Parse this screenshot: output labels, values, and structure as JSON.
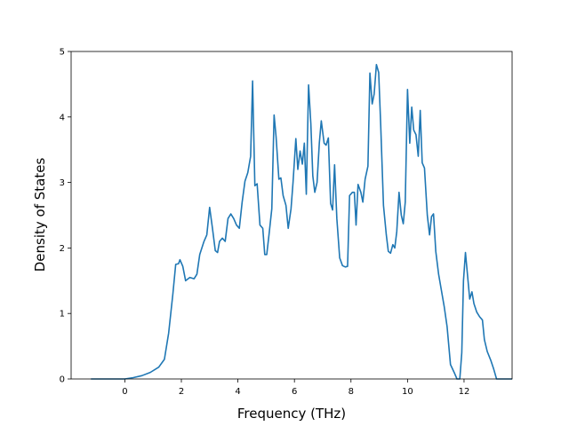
{
  "chart_data": {
    "type": "line",
    "title": "",
    "xlabel": "Frequency (THz)",
    "ylabel": "Density of States",
    "xlim": [
      -1.9,
      13.7
    ],
    "ylim": [
      0,
      5
    ],
    "x_ticks": [
      0,
      2,
      4,
      6,
      8,
      10,
      12
    ],
    "y_ticks": [
      0,
      1,
      2,
      3,
      4,
      5
    ],
    "x_tick_labels": [
      "0",
      "2",
      "4",
      "6",
      "8",
      "10",
      "12"
    ],
    "y_tick_labels": [
      "0",
      "1",
      "2",
      "3",
      "4",
      "5"
    ],
    "grid": false,
    "legend": "none",
    "series": [
      {
        "color": "#1f77b4",
        "points": [
          [
            -1.2,
            0.0
          ],
          [
            0.0,
            0.0
          ],
          [
            0.3,
            0.02
          ],
          [
            0.6,
            0.05
          ],
          [
            0.9,
            0.1
          ],
          [
            1.2,
            0.18
          ],
          [
            1.4,
            0.3
          ],
          [
            1.55,
            0.7
          ],
          [
            1.7,
            1.3
          ],
          [
            1.8,
            1.75
          ],
          [
            1.9,
            1.76
          ],
          [
            1.95,
            1.82
          ],
          [
            2.05,
            1.72
          ],
          [
            2.15,
            1.5
          ],
          [
            2.3,
            1.55
          ],
          [
            2.45,
            1.53
          ],
          [
            2.55,
            1.6
          ],
          [
            2.65,
            1.9
          ],
          [
            2.8,
            2.1
          ],
          [
            2.9,
            2.2
          ],
          [
            3.0,
            2.62
          ],
          [
            3.1,
            2.3
          ],
          [
            3.2,
            1.96
          ],
          [
            3.28,
            1.93
          ],
          [
            3.35,
            2.1
          ],
          [
            3.45,
            2.15
          ],
          [
            3.55,
            2.1
          ],
          [
            3.65,
            2.45
          ],
          [
            3.75,
            2.52
          ],
          [
            3.85,
            2.45
          ],
          [
            3.95,
            2.35
          ],
          [
            4.05,
            2.3
          ],
          [
            4.15,
            2.7
          ],
          [
            4.25,
            3.02
          ],
          [
            4.35,
            3.15
          ],
          [
            4.45,
            3.4
          ],
          [
            4.52,
            4.55
          ],
          [
            4.6,
            2.95
          ],
          [
            4.68,
            2.98
          ],
          [
            4.78,
            2.35
          ],
          [
            4.88,
            2.3
          ],
          [
            4.95,
            1.9
          ],
          [
            5.02,
            1.9
          ],
          [
            5.1,
            2.2
          ],
          [
            5.2,
            2.6
          ],
          [
            5.28,
            4.03
          ],
          [
            5.35,
            3.7
          ],
          [
            5.45,
            3.05
          ],
          [
            5.52,
            3.07
          ],
          [
            5.6,
            2.8
          ],
          [
            5.7,
            2.65
          ],
          [
            5.78,
            2.3
          ],
          [
            5.88,
            2.6
          ],
          [
            5.95,
            3.0
          ],
          [
            6.05,
            3.67
          ],
          [
            6.12,
            3.2
          ],
          [
            6.2,
            3.48
          ],
          [
            6.28,
            3.28
          ],
          [
            6.35,
            3.6
          ],
          [
            6.42,
            2.82
          ],
          [
            6.5,
            4.49
          ],
          [
            6.58,
            3.9
          ],
          [
            6.65,
            3.1
          ],
          [
            6.72,
            2.85
          ],
          [
            6.8,
            3.0
          ],
          [
            6.88,
            3.6
          ],
          [
            6.95,
            3.94
          ],
          [
            7.05,
            3.6
          ],
          [
            7.12,
            3.57
          ],
          [
            7.2,
            3.68
          ],
          [
            7.28,
            2.68
          ],
          [
            7.35,
            2.58
          ],
          [
            7.42,
            3.27
          ],
          [
            7.5,
            2.45
          ],
          [
            7.6,
            1.85
          ],
          [
            7.7,
            1.73
          ],
          [
            7.8,
            1.71
          ],
          [
            7.88,
            1.72
          ],
          [
            7.95,
            2.8
          ],
          [
            8.05,
            2.85
          ],
          [
            8.12,
            2.85
          ],
          [
            8.18,
            2.35
          ],
          [
            8.25,
            2.97
          ],
          [
            8.35,
            2.85
          ],
          [
            8.42,
            2.7
          ],
          [
            8.5,
            3.05
          ],
          [
            8.6,
            3.25
          ],
          [
            8.67,
            4.67
          ],
          [
            8.75,
            4.2
          ],
          [
            8.82,
            4.35
          ],
          [
            8.9,
            4.8
          ],
          [
            8.98,
            4.68
          ],
          [
            9.05,
            3.9
          ],
          [
            9.15,
            2.65
          ],
          [
            9.25,
            2.2
          ],
          [
            9.32,
            1.95
          ],
          [
            9.4,
            1.92
          ],
          [
            9.48,
            2.05
          ],
          [
            9.55,
            2.0
          ],
          [
            9.62,
            2.25
          ],
          [
            9.7,
            2.85
          ],
          [
            9.78,
            2.5
          ],
          [
            9.85,
            2.37
          ],
          [
            9.92,
            2.7
          ],
          [
            10.0,
            4.42
          ],
          [
            10.08,
            3.6
          ],
          [
            10.15,
            4.15
          ],
          [
            10.22,
            3.8
          ],
          [
            10.3,
            3.73
          ],
          [
            10.38,
            3.4
          ],
          [
            10.45,
            4.1
          ],
          [
            10.52,
            3.3
          ],
          [
            10.6,
            3.22
          ],
          [
            10.7,
            2.5
          ],
          [
            10.78,
            2.2
          ],
          [
            10.85,
            2.48
          ],
          [
            10.92,
            2.52
          ],
          [
            11.0,
            1.95
          ],
          [
            11.1,
            1.6
          ],
          [
            11.2,
            1.35
          ],
          [
            11.3,
            1.1
          ],
          [
            11.4,
            0.8
          ],
          [
            11.52,
            0.22
          ],
          [
            11.65,
            0.1
          ],
          [
            11.75,
            0.0
          ],
          [
            11.85,
            0.0
          ],
          [
            11.92,
            0.4
          ],
          [
            11.98,
            1.5
          ],
          [
            12.05,
            1.93
          ],
          [
            12.12,
            1.6
          ],
          [
            12.2,
            1.22
          ],
          [
            12.28,
            1.33
          ],
          [
            12.35,
            1.15
          ],
          [
            12.45,
            1.02
          ],
          [
            12.55,
            0.95
          ],
          [
            12.65,
            0.9
          ],
          [
            12.72,
            0.6
          ],
          [
            12.82,
            0.42
          ],
          [
            12.95,
            0.28
          ],
          [
            13.05,
            0.15
          ],
          [
            13.15,
            0.0
          ],
          [
            13.5,
            0.0
          ],
          [
            14.2,
            0.0
          ]
        ]
      }
    ]
  }
}
